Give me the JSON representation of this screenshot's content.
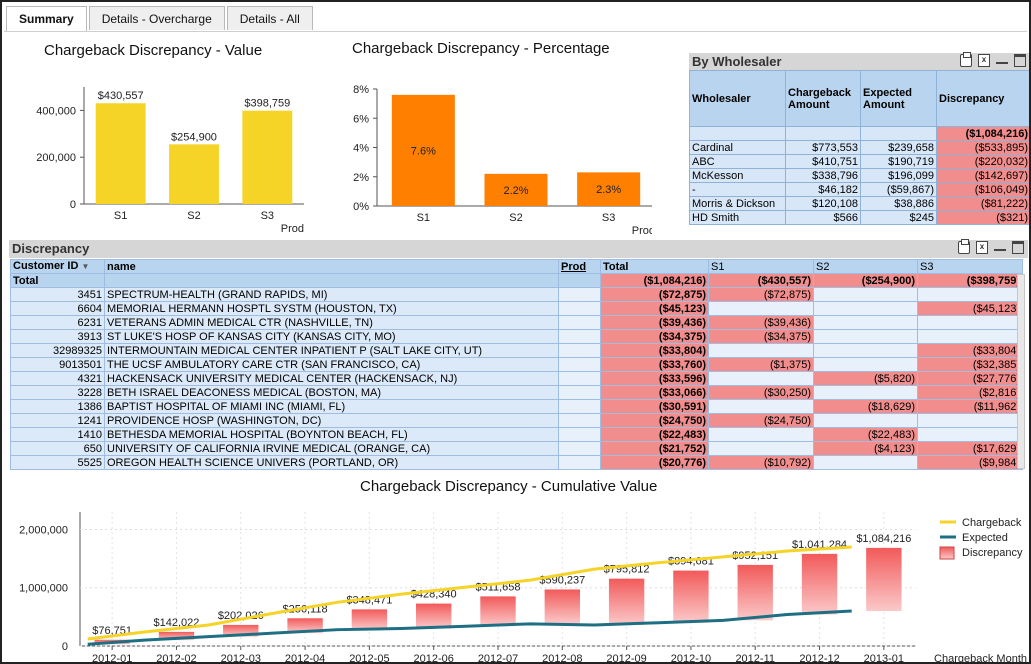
{
  "tabs": [
    "Summary",
    "Details - Overcharge",
    "Details - All"
  ],
  "value_chart": {
    "title": "Chargeback Discrepancy - Value",
    "xlabel": "Prod",
    "yticks": [
      "400,000",
      "200,000",
      "0"
    ],
    "categories": [
      "S1",
      "S2",
      "S3"
    ],
    "values": [
      430557,
      254900,
      398759
    ],
    "labels": [
      "$430,557",
      "$254,900",
      "$398,759"
    ],
    "ylim": [
      0,
      500000
    ],
    "color": "#f5d327"
  },
  "pct_chart": {
    "title": "Chargeback Discrepancy - Percentage",
    "xlabel": "Prod",
    "yticks": [
      "8%",
      "6%",
      "4%",
      "2%",
      "0%"
    ],
    "categories": [
      "S1",
      "S2",
      "S3"
    ],
    "values": [
      7.6,
      2.2,
      2.3
    ],
    "labels": [
      "7.6%",
      "2.2%",
      "2.3%"
    ],
    "ylim": [
      0,
      8
    ],
    "color": "#ff7f00"
  },
  "wholesaler": {
    "title": "By Wholesaler",
    "headers": [
      "Wholesaler",
      "Chargeback Amount",
      "Expected Amount",
      "Discrepancy"
    ],
    "total": "($1,084,216)",
    "rows": [
      [
        "Cardinal",
        "$773,553",
        "$239,658",
        "($533,895)"
      ],
      [
        "ABC",
        "$410,751",
        "$190,719",
        "($220,032)"
      ],
      [
        "McKesson",
        "$338,796",
        "$196,099",
        "($142,697)"
      ],
      [
        "-",
        "$46,182",
        "($59,867)",
        "($106,049)"
      ],
      [
        "Morris & Dickson",
        "$120,108",
        "$38,886",
        "($81,222)"
      ],
      [
        "HD Smith",
        "$566",
        "$245",
        "($321)"
      ]
    ]
  },
  "discrepancy": {
    "title": "Discrepancy",
    "headers": {
      "id": "Customer ID",
      "name": "name",
      "prod": "Prod",
      "total": "Total",
      "s1": "S1",
      "s2": "S2",
      "s3": "S3"
    },
    "total_row": {
      "label": "Total",
      "total": "($1,084,216)",
      "s1": "($430,557)",
      "s2": "($254,900)",
      "s3": "($398,759)"
    },
    "rows": [
      {
        "id": "3451",
        "name": "SPECTRUM-HEALTH (GRAND RAPIDS, MI)",
        "total": "($72,875)",
        "s1": "($72,875)",
        "s2": "",
        "s3": ""
      },
      {
        "id": "6604",
        "name": "MEMORIAL HERMANN HOSPTL SYSTM (HOUSTON, TX)",
        "total": "($45,123)",
        "s1": "",
        "s2": "",
        "s3": "($45,123)"
      },
      {
        "id": "6231",
        "name": "VETERANS ADMIN MEDICAL CTR (NASHVILLE, TN)",
        "total": "($39,436)",
        "s1": "($39,436)",
        "s2": "",
        "s3": ""
      },
      {
        "id": "3913",
        "name": "ST LUKE'S HOSP OF KANSAS CITY (KANSAS CITY, MO)",
        "total": "($34,375)",
        "s1": "($34,375)",
        "s2": "",
        "s3": ""
      },
      {
        "id": "32989325",
        "name": "INTERMOUNTAIN MEDICAL CENTER INPATIENT P (SALT LAKE CITY, UT)",
        "total": "($33,804)",
        "s1": "",
        "s2": "",
        "s3": "($33,804)"
      },
      {
        "id": "9013501",
        "name": "THE UCSF AMBULATORY CARE CTR (SAN FRANCISCO, CA)",
        "total": "($33,760)",
        "s1": "($1,375)",
        "s2": "",
        "s3": "($32,385)"
      },
      {
        "id": "4321",
        "name": "HACKENSACK UNIVERSITY MEDICAL CENTER (HACKENSACK, NJ)",
        "total": "($33,596)",
        "s1": "",
        "s2": "($5,820)",
        "s3": "($27,776)"
      },
      {
        "id": "3228",
        "name": "BETH ISRAEL DEACONESS MEDICAL (BOSTON, MA)",
        "total": "($33,066)",
        "s1": "($30,250)",
        "s2": "",
        "s3": "($2,816)"
      },
      {
        "id": "1386",
        "name": "BAPTIST HOSPITAL OF MIAMI INC (MIAMI, FL)",
        "total": "($30,591)",
        "s1": "",
        "s2": "($18,629)",
        "s3": "($11,962)"
      },
      {
        "id": "1241",
        "name": "PROVIDENCE HOSP (WASHINGTON, DC)",
        "total": "($24,750)",
        "s1": "($24,750)",
        "s2": "",
        "s3": ""
      },
      {
        "id": "1410",
        "name": "BETHESDA MEMORIAL HOSPITAL (BOYNTON BEACH, FL)",
        "total": "($22,483)",
        "s1": "",
        "s2": "($22,483)",
        "s3": ""
      },
      {
        "id": "650",
        "name": "UNIVERSITY OF CALIFORNIA IRVINE MEDICAL (ORANGE, CA)",
        "total": "($21,752)",
        "s1": "",
        "s2": "($4,123)",
        "s3": "($17,629)"
      },
      {
        "id": "5525",
        "name": "OREGON HEALTH SCIENCE UNIVERS (PORTLAND, OR)",
        "total": "($20,776)",
        "s1": "($10,792)",
        "s2": "",
        "s3": "($9,984)"
      }
    ]
  },
  "chart_data": {
    "type": "bar",
    "title": "Chargeback Discrepancy - Cumulative Value",
    "xlabel": "Chargeback Month",
    "categories": [
      "2012-01",
      "2012-02",
      "2012-03",
      "2012-04",
      "2012-05",
      "2012-06",
      "2012-07",
      "2012-08",
      "2012-09",
      "2012-10",
      "2012-11",
      "2012-12",
      "2013-01"
    ],
    "yticks": [
      "2,000,000",
      "1,000,000",
      "0"
    ],
    "ylim": [
      0,
      2300000
    ],
    "series": [
      {
        "name": "Discrepancy",
        "type": "bar",
        "color": "#f26b6b",
        "values": [
          76751,
          142022,
          202026,
          256118,
          348471,
          428340,
          511658,
          590237,
          795812,
          894681,
          952151,
          1041284,
          1084216
        ],
        "labels": [
          "$76,751",
          "$142,022",
          "$202,026",
          "$256,118",
          "$348,471",
          "$428,340",
          "$511,658",
          "$590,237",
          "$795,812",
          "$894,681",
          "$952,151",
          "$1,041,284",
          "$1,084,216"
        ]
      },
      {
        "name": "Chargeback",
        "type": "line",
        "color": "#f5d327",
        "values": [
          120000,
          240000,
          360000,
          560000,
          750000,
          890000,
          1010000,
          1130000,
          1320000,
          1430000,
          1530000,
          1630000,
          1700000
        ]
      },
      {
        "name": "Expected",
        "type": "line",
        "color": "#1f6f84",
        "values": [
          30000,
          100000,
          160000,
          220000,
          280000,
          300000,
          340000,
          380000,
          360000,
          400000,
          440000,
          540000,
          600000
        ]
      }
    ]
  }
}
